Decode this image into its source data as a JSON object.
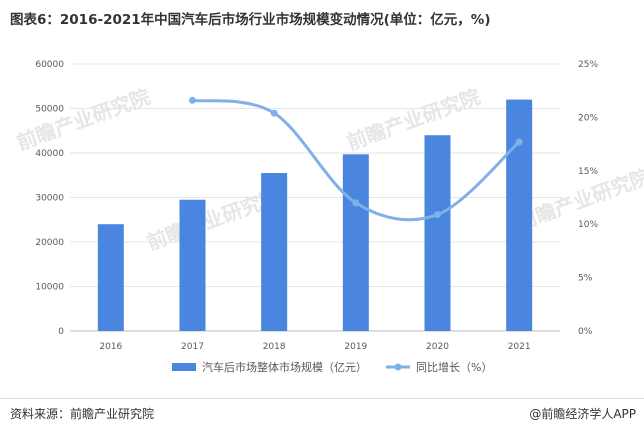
{
  "page": {
    "title": "图表6：2016-2021年中国汽车后市场行业市场规模变动情况(单位：亿元，%)",
    "source": "资料来源：前瞻产业研究院",
    "brand": "@前瞻经济学人APP",
    "watermark": "前瞻产业研究院"
  },
  "colors": {
    "bar": "#4a86e0",
    "line": "#7fb0e6",
    "grid": "#e6e6e6"
  },
  "chart_data": {
    "type": "bar+line",
    "categories": [
      "2016",
      "2017",
      "2018",
      "2019",
      "2020",
      "2021"
    ],
    "series": [
      {
        "name": "汽车后市场整体市场规模（亿元）",
        "type": "bar",
        "axis": "left",
        "values": [
          24000,
          29500,
          35500,
          39700,
          44000,
          52000
        ]
      },
      {
        "name": "同比增长（%）",
        "type": "line",
        "axis": "right",
        "smooth": true,
        "values": [
          null,
          21.6,
          20.4,
          12.0,
          10.9,
          17.7
        ]
      }
    ],
    "y_left": {
      "min": 0,
      "max": 60000,
      "ticks": [
        "0",
        "10000",
        "20000",
        "30000",
        "40000",
        "50000",
        "60000"
      ]
    },
    "y_right": {
      "min": 0,
      "max": 25,
      "ticks": [
        "0%",
        "5%",
        "10%",
        "15%",
        "20%",
        "25%"
      ]
    },
    "grid": true,
    "legend": "bottom-center"
  }
}
